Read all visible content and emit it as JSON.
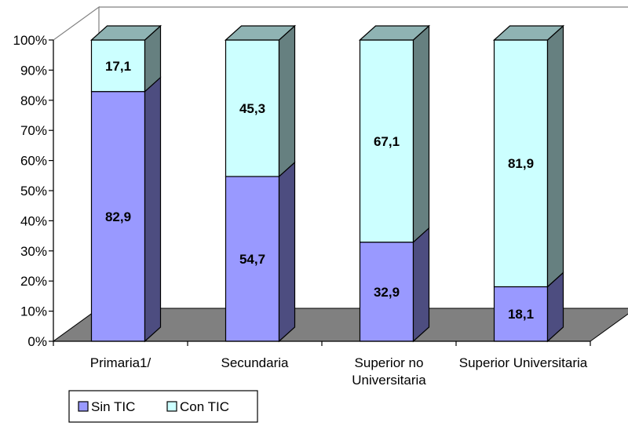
{
  "chart_data": {
    "type": "bar",
    "stacked": true,
    "normalized_percent": true,
    "three_d": true,
    "categories": [
      "Primaria1/",
      "Secundaria",
      "Superior no Universitaria",
      "Superior Universitaria"
    ],
    "category_label_lines": [
      [
        "Primaria1/"
      ],
      [
        "Secundaria"
      ],
      [
        "Superior no",
        "Universitaria"
      ],
      [
        "Superior Universitaria"
      ]
    ],
    "series": [
      {
        "name": "Sin TIC",
        "values": [
          82.9,
          54.7,
          32.9,
          18.1
        ],
        "labels": [
          "82,9",
          "54,7",
          "32,9",
          "18,1"
        ],
        "color": "#9999ff"
      },
      {
        "name": "Con TIC",
        "values": [
          17.1,
          45.3,
          67.1,
          81.9
        ],
        "labels": [
          "17,1",
          "45,3",
          "67,1",
          "81,9"
        ],
        "color": "#ccffff"
      }
    ],
    "ylim": [
      0,
      100
    ],
    "yticks": [
      "0%",
      "10%",
      "20%",
      "30%",
      "40%",
      "50%",
      "60%",
      "70%",
      "80%",
      "90%",
      "100%"
    ],
    "title": "",
    "xlabel": "",
    "ylabel": "",
    "grid": false,
    "legend_position": "bottom-left",
    "floor_color": "#808080"
  }
}
